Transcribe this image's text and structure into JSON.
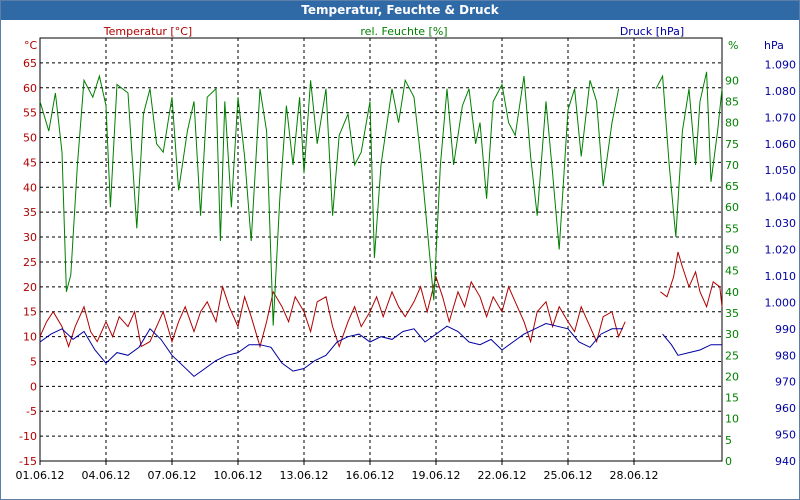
{
  "window": {
    "title": "Temperatur, Feuchte & Druck"
  },
  "chart_data": {
    "type": "line",
    "title": "Temperatur, Feuchte & Druck",
    "grid": true,
    "colors": {
      "temperature": "#b00000",
      "humidity": "#008000",
      "pressure": "#0000a0",
      "title_bar": "#2f6aa7"
    },
    "x": {
      "labels": [
        "01.06.12",
        "04.06.12",
        "07.06.12",
        "10.06.12",
        "13.06.12",
        "16.06.12",
        "19.06.12",
        "22.06.12",
        "25.06.12",
        "28.06.12"
      ],
      "range_days": [
        0,
        31
      ]
    },
    "axes": {
      "temperature": {
        "unit": "°C",
        "min": -15,
        "max": 70,
        "ticks": [
          65,
          60,
          55,
          50,
          45,
          40,
          35,
          30,
          25,
          20,
          15,
          10,
          5,
          0,
          -5,
          -10,
          -15
        ]
      },
      "humidity": {
        "unit": "%",
        "min": 0,
        "max": 100,
        "ticks": [
          90,
          85,
          80,
          75,
          70,
          65,
          60,
          55,
          50,
          45,
          40,
          35,
          30,
          25,
          20,
          15,
          10,
          5,
          0
        ]
      },
      "pressure": {
        "unit": "hPa",
        "min": 940,
        "max": 1100,
        "ticks": [
          "1.090",
          "1.080",
          "1.070",
          "1.060",
          "1.050",
          "1.040",
          "1.030",
          "1.020",
          "1.010",
          "1.000",
          "990",
          "980",
          "970",
          "960",
          "950",
          "940"
        ]
      }
    },
    "series": [
      {
        "name": "Temperatur [°C]",
        "axis": "temperature",
        "points": [
          [
            0,
            10
          ],
          [
            0.3,
            13
          ],
          [
            0.6,
            15
          ],
          [
            1,
            12
          ],
          [
            1.3,
            8
          ],
          [
            1.6,
            12
          ],
          [
            2,
            16
          ],
          [
            2.3,
            11
          ],
          [
            2.6,
            9
          ],
          [
            3,
            13
          ],
          [
            3.3,
            10
          ],
          [
            3.6,
            14
          ],
          [
            4,
            12
          ],
          [
            4.3,
            15
          ],
          [
            4.6,
            8
          ],
          [
            5,
            9
          ],
          [
            5.3,
            12
          ],
          [
            5.6,
            15
          ],
          [
            6,
            9
          ],
          [
            6.3,
            13
          ],
          [
            6.6,
            16
          ],
          [
            7,
            11
          ],
          [
            7.3,
            15
          ],
          [
            7.6,
            17
          ],
          [
            8,
            13
          ],
          [
            8.3,
            20
          ],
          [
            8.6,
            16
          ],
          [
            9,
            12
          ],
          [
            9.3,
            18
          ],
          [
            9.6,
            14
          ],
          [
            10,
            8
          ],
          [
            10.3,
            13
          ],
          [
            10.6,
            19
          ],
          [
            11,
            16
          ],
          [
            11.3,
            13
          ],
          [
            11.6,
            18
          ],
          [
            12,
            15
          ],
          [
            12.3,
            11
          ],
          [
            12.6,
            17
          ],
          [
            13,
            18
          ],
          [
            13.3,
            12
          ],
          [
            13.6,
            8
          ],
          [
            14,
            13
          ],
          [
            14.3,
            16
          ],
          [
            14.6,
            12
          ],
          [
            15,
            15
          ],
          [
            15.3,
            18
          ],
          [
            15.6,
            14
          ],
          [
            16,
            19
          ],
          [
            16.3,
            16
          ],
          [
            16.6,
            14
          ],
          [
            17,
            17
          ],
          [
            17.3,
            20
          ],
          [
            17.6,
            15
          ],
          [
            18,
            22
          ],
          [
            18.3,
            18
          ],
          [
            18.6,
            13
          ],
          [
            19,
            19
          ],
          [
            19.3,
            16
          ],
          [
            19.6,
            21
          ],
          [
            20,
            18
          ],
          [
            20.3,
            14
          ],
          [
            20.6,
            18
          ],
          [
            21,
            15
          ],
          [
            21.3,
            20
          ],
          [
            21.6,
            17
          ],
          [
            22,
            13
          ],
          [
            22.3,
            9
          ],
          [
            22.6,
            15
          ],
          [
            23,
            17
          ],
          [
            23.3,
            12
          ],
          [
            23.6,
            16
          ],
          [
            24,
            13
          ],
          [
            24.3,
            11
          ],
          [
            24.6,
            16
          ],
          [
            25,
            12
          ],
          [
            25.3,
            9
          ],
          [
            25.6,
            14
          ],
          [
            26,
            15
          ],
          [
            26.3,
            10
          ],
          [
            26.6,
            13
          ]
        ],
        "gap_after_day": 26.6,
        "points2": [
          [
            28.2,
            19
          ],
          [
            28.5,
            18
          ],
          [
            28.8,
            22
          ],
          [
            29,
            27
          ],
          [
            29.2,
            24
          ],
          [
            29.5,
            20
          ],
          [
            29.8,
            23
          ],
          [
            30,
            19
          ],
          [
            30.3,
            16
          ],
          [
            30.6,
            21
          ],
          [
            30.9,
            20
          ],
          [
            31,
            16
          ]
        ]
      },
      {
        "name": "rel. Feuchte [%]",
        "axis": "humidity",
        "points": [
          [
            0,
            85
          ],
          [
            0.4,
            78
          ],
          [
            0.7,
            87
          ],
          [
            1,
            73
          ],
          [
            1.2,
            40
          ],
          [
            1.4,
            44
          ],
          [
            1.7,
            70
          ],
          [
            2,
            90
          ],
          [
            2.4,
            86
          ],
          [
            2.7,
            91
          ],
          [
            3,
            84
          ],
          [
            3.2,
            60
          ],
          [
            3.5,
            89
          ],
          [
            4,
            87
          ],
          [
            4.4,
            55
          ],
          [
            4.7,
            82
          ],
          [
            5,
            88
          ],
          [
            5.3,
            75
          ],
          [
            5.6,
            73
          ],
          [
            6,
            86
          ],
          [
            6.3,
            64
          ],
          [
            6.7,
            78
          ],
          [
            7,
            85
          ],
          [
            7.3,
            58
          ],
          [
            7.6,
            86
          ],
          [
            8,
            88
          ],
          [
            8.2,
            52
          ],
          [
            8.4,
            85
          ],
          [
            8.7,
            60
          ],
          [
            9,
            86
          ],
          [
            9.3,
            72
          ],
          [
            9.6,
            52
          ],
          [
            10,
            88
          ],
          [
            10.3,
            78
          ],
          [
            10.6,
            32
          ],
          [
            10.9,
            62
          ],
          [
            11.2,
            84
          ],
          [
            11.5,
            70
          ],
          [
            11.8,
            86
          ],
          [
            12,
            68
          ],
          [
            12.3,
            90
          ],
          [
            12.6,
            75
          ],
          [
            13,
            88
          ],
          [
            13.3,
            58
          ],
          [
            13.6,
            77
          ],
          [
            14,
            82
          ],
          [
            14.3,
            70
          ],
          [
            14.6,
            73
          ],
          [
            15,
            85
          ],
          [
            15.2,
            48
          ],
          [
            15.5,
            70
          ],
          [
            16,
            88
          ],
          [
            16.3,
            80
          ],
          [
            16.6,
            90
          ],
          [
            17,
            86
          ],
          [
            17.3,
            72
          ],
          [
            17.6,
            55
          ],
          [
            17.9,
            38
          ],
          [
            18.2,
            70
          ],
          [
            18.5,
            88
          ],
          [
            18.8,
            70
          ],
          [
            19.2,
            84
          ],
          [
            19.5,
            88
          ],
          [
            19.8,
            75
          ],
          [
            20,
            80
          ],
          [
            20.3,
            62
          ],
          [
            20.6,
            85
          ],
          [
            21,
            89
          ],
          [
            21.3,
            80
          ],
          [
            21.6,
            77
          ],
          [
            22,
            91
          ],
          [
            22.3,
            72
          ],
          [
            22.6,
            58
          ],
          [
            23,
            85
          ],
          [
            23.3,
            68
          ],
          [
            23.6,
            50
          ],
          [
            24,
            83
          ],
          [
            24.3,
            88
          ],
          [
            24.6,
            72
          ],
          [
            25,
            90
          ],
          [
            25.3,
            85
          ],
          [
            25.6,
            65
          ],
          [
            26,
            80
          ],
          [
            26.3,
            88
          ]
        ],
        "gap_after_day": 26.3,
        "points2": [
          [
            28,
            88
          ],
          [
            28.3,
            91
          ],
          [
            28.6,
            70
          ],
          [
            28.9,
            53
          ],
          [
            29.2,
            78
          ],
          [
            29.5,
            88
          ],
          [
            29.8,
            70
          ],
          [
            30,
            85
          ],
          [
            30.3,
            92
          ],
          [
            30.5,
            66
          ],
          [
            30.8,
            78
          ],
          [
            31,
            88
          ]
        ]
      },
      {
        "name": "Druck [hPa]",
        "axis": "pressure",
        "points": [
          [
            0,
            985
          ],
          [
            0.5,
            988
          ],
          [
            1,
            990
          ],
          [
            1.5,
            986
          ],
          [
            2,
            989
          ],
          [
            2.5,
            982
          ],
          [
            3,
            977
          ],
          [
            3.5,
            981
          ],
          [
            4,
            980
          ],
          [
            4.5,
            983
          ],
          [
            5,
            990
          ],
          [
            5.5,
            986
          ],
          [
            6,
            980
          ],
          [
            6.5,
            976
          ],
          [
            7,
            972
          ],
          [
            7.5,
            975
          ],
          [
            8,
            978
          ],
          [
            8.5,
            980
          ],
          [
            9,
            981
          ],
          [
            9.5,
            984
          ],
          [
            10,
            984
          ],
          [
            10.5,
            983
          ],
          [
            11,
            977
          ],
          [
            11.5,
            974
          ],
          [
            12,
            975
          ],
          [
            12.5,
            978
          ],
          [
            13,
            980
          ],
          [
            13.5,
            985
          ],
          [
            14,
            987
          ],
          [
            14.5,
            988
          ],
          [
            15,
            985
          ],
          [
            15.5,
            987
          ],
          [
            16,
            986
          ],
          [
            16.5,
            989
          ],
          [
            17,
            990
          ],
          [
            17.5,
            985
          ],
          [
            18,
            988
          ],
          [
            18.5,
            991
          ],
          [
            19,
            989
          ],
          [
            19.5,
            985
          ],
          [
            20,
            984
          ],
          [
            20.5,
            986
          ],
          [
            21,
            982
          ],
          [
            21.5,
            985
          ],
          [
            22,
            988
          ],
          [
            22.5,
            990
          ],
          [
            23,
            992
          ],
          [
            23.5,
            991
          ],
          [
            24,
            990
          ],
          [
            24.5,
            985
          ],
          [
            25,
            983
          ],
          [
            25.5,
            988
          ],
          [
            26,
            990
          ],
          [
            26.5,
            990
          ]
        ],
        "gap_after_day": 26.5,
        "points2": [
          [
            28.3,
            988
          ],
          [
            28.7,
            984
          ],
          [
            29,
            980
          ],
          [
            29.5,
            981
          ],
          [
            30,
            982
          ],
          [
            30.5,
            984
          ],
          [
            31,
            984
          ]
        ]
      }
    ]
  }
}
